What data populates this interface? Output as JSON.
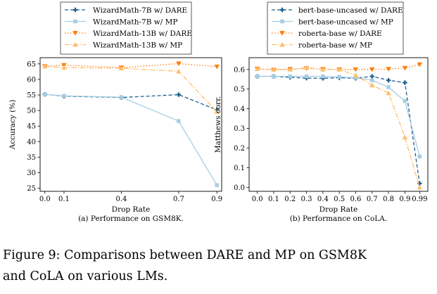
{
  "chart_data": [
    {
      "type": "line",
      "xlabel": "Drop Rate",
      "ylabel": "Accuracy (%)",
      "caption": "(a) Performance on GSM8K.",
      "x": [
        0.0,
        0.1,
        0.4,
        0.7,
        0.9
      ],
      "x_ticks": [
        "0.0",
        "0.1",
        "0.4",
        "0.7",
        "0.9"
      ],
      "y_ticks": [
        25,
        30,
        35,
        40,
        45,
        50,
        55,
        60,
        65
      ],
      "xlim": [
        -0.025,
        0.925
      ],
      "ylim": [
        24,
        67
      ],
      "grid": false,
      "legend_position": "top",
      "series": [
        {
          "name": "WizardMath-7B w/ DARE",
          "color": "#1f5f8b",
          "dash": "5,3",
          "marker": "plus",
          "values": [
            55.2,
            54.6,
            54.2,
            55.1,
            50.2
          ]
        },
        {
          "name": "WizardMath-7B w/ MP",
          "color": "#a6cee3",
          "dash": "",
          "marker": "square",
          "values": [
            55.2,
            54.7,
            54.3,
            46.6,
            26.0
          ]
        },
        {
          "name": "WizardMath-13B w/ DARE",
          "color": "#ff7f0e",
          "dash": "1.5,2.5",
          "marker": "triangle-down",
          "values": [
            64.2,
            64.6,
            63.8,
            65.1,
            64.1
          ]
        },
        {
          "name": "WizardMath-13B w/ MP",
          "color": "#fdbf6f",
          "dash": "7,2,1.5,2",
          "marker": "triangle-up",
          "values": [
            64.2,
            63.8,
            63.6,
            62.6,
            49.6
          ]
        }
      ]
    },
    {
      "type": "line",
      "xlabel": "Drop Rate",
      "ylabel": "Matthews corr.",
      "caption": "(b) Performance on CoLA.",
      "x": [
        0.0,
        0.1,
        0.2,
        0.3,
        0.4,
        0.5,
        0.6,
        0.7,
        0.8,
        0.9,
        0.99
      ],
      "x_ticks": [
        "0.0",
        "0.1",
        "0.2",
        "0.3",
        "0.4",
        "0.5",
        "0.6",
        "0.7",
        "0.8",
        "0.9",
        "0.99"
      ],
      "y_ticks": [
        0.0,
        0.1,
        0.2,
        0.3,
        0.4,
        0.5,
        0.6
      ],
      "xlim": [
        -0.05,
        1.04
      ],
      "ylim": [
        -0.02,
        0.66
      ],
      "grid": false,
      "legend_position": "top",
      "series": [
        {
          "name": "bert-base-uncased w/ DARE",
          "color": "#1f5f8b",
          "dash": "5,3",
          "marker": "plus",
          "values": [
            0.565,
            0.565,
            0.56,
            0.556,
            0.555,
            0.558,
            0.555,
            0.565,
            0.545,
            0.533,
            0.02
          ]
        },
        {
          "name": "bert-base-uncased w/ MP",
          "color": "#a6cee3",
          "dash": "",
          "marker": "square",
          "values": [
            0.565,
            0.565,
            0.565,
            0.565,
            0.565,
            0.562,
            0.558,
            0.545,
            0.51,
            0.44,
            0.157
          ]
        },
        {
          "name": "roberta-base w/ DARE",
          "color": "#ff7f0e",
          "dash": "1.5,2.5",
          "marker": "triangle-down",
          "values": [
            0.603,
            0.598,
            0.602,
            0.605,
            0.602,
            0.6,
            0.6,
            0.6,
            0.602,
            0.607,
            0.625
          ]
        },
        {
          "name": "roberta-base w/ MP",
          "color": "#fdbf6f",
          "dash": "7,2,1.5,2",
          "marker": "triangle-up",
          "values": [
            0.603,
            0.6,
            0.6,
            0.61,
            0.6,
            0.6,
            0.57,
            0.52,
            0.48,
            0.255,
            0.0
          ]
        }
      ]
    }
  ],
  "figure_caption": {
    "line1": "Figure 9: Comparisons between DARE and MP on GSM8K",
    "line2": "and CoLA on various LMs."
  }
}
